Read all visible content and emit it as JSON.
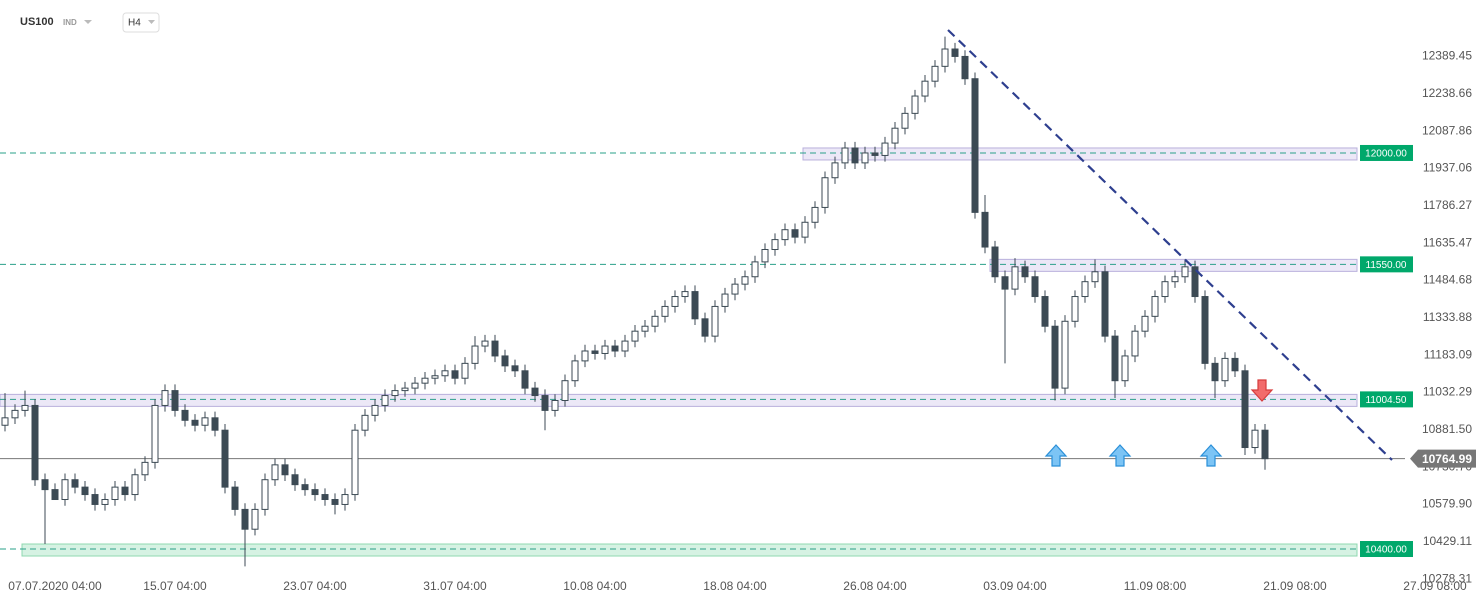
{
  "header": {
    "symbol": "US100",
    "market": "IND",
    "interval": "H4"
  },
  "chart_data": {
    "type": "candlestick",
    "categories": [
      null,
      null,
      null,
      null,
      null,
      "07.07.2020 04:00",
      null,
      null,
      null,
      null,
      null,
      null,
      null,
      null,
      null,
      null,
      null,
      "15.07 04:00",
      null,
      null,
      null,
      null,
      null,
      null,
      null,
      null,
      null,
      null,
      null,
      null,
      null,
      "23.07 04:00",
      null,
      null,
      null,
      null,
      null,
      null,
      null,
      null,
      null,
      null,
      null,
      null,
      null,
      "31.07 04:00",
      null,
      null,
      null,
      null,
      null,
      null,
      null,
      null,
      null,
      null,
      null,
      null,
      null,
      "10.08 04:00",
      null,
      null,
      null,
      null,
      null,
      null,
      null,
      null,
      null,
      null,
      null,
      null,
      null,
      "18.08 04:00",
      null,
      null,
      null,
      null,
      null,
      null,
      null,
      null,
      null,
      null,
      null,
      null,
      null,
      "26.08 04:00",
      null,
      null,
      null,
      null,
      null,
      null,
      null,
      null,
      null,
      null,
      null,
      null,
      null,
      "03.09 04:00",
      null,
      null,
      null,
      null,
      null,
      null,
      null,
      null,
      null,
      null,
      null,
      null,
      null,
      "11.09 08:00",
      null,
      null,
      null,
      null,
      null,
      null,
      null,
      null,
      null,
      null,
      null,
      null,
      null,
      "21.09 08:00",
      null,
      null,
      null,
      null,
      null,
      null,
      null,
      null,
      null,
      null,
      null,
      null,
      null,
      "27.09 08:00"
    ],
    "open": [
      10900,
      10930,
      10960,
      10980,
      10680,
      10640,
      10600,
      10680,
      10650,
      10620,
      10580,
      10600,
      10650,
      10620,
      10700,
      10750,
      10980,
      11040,
      10960,
      10920,
      10900,
      10930,
      10880,
      10650,
      10560,
      10480,
      10560,
      10680,
      10740,
      10700,
      10660,
      10640,
      10620,
      10600,
      10580,
      10620,
      10880,
      10940,
      10980,
      11020,
      11040,
      11050,
      11070,
      11090,
      11100,
      11120,
      11090,
      11150,
      11220,
      11240,
      11180,
      11140,
      11120,
      11050,
      11020,
      10960,
      11000,
      11080,
      11160,
      11200,
      11190,
      11220,
      11200,
      11240,
      11280,
      11300,
      11340,
      11380,
      11420,
      11440,
      11330,
      11260,
      11380,
      11430,
      11470,
      11500,
      11560,
      11610,
      11650,
      11690,
      11660,
      11720,
      11780,
      11900,
      11960,
      12020,
      11960,
      12000,
      11990,
      12040,
      12100,
      12160,
      12230,
      12290,
      12350,
      12420,
      12390,
      12300,
      11760,
      11620,
      11500,
      11450,
      11540,
      11500,
      11420,
      11300,
      11050,
      11320,
      11420,
      11480,
      11520,
      11260,
      11080,
      11180,
      11280,
      11340,
      11420,
      11480,
      11500,
      11540,
      11420,
      11150,
      11080,
      11170,
      11120,
      10810,
      10880,
      null,
      null,
      null,
      null,
      null,
      null,
      null,
      null,
      null,
      null,
      null,
      null,
      null,
      null,
      null,
      null,
      null
    ],
    "high": [
      11030,
      10985,
      11040,
      11005,
      10705,
      10665,
      10705,
      10705,
      10675,
      10645,
      10625,
      10675,
      10675,
      10725,
      10775,
      11005,
      11065,
      11065,
      10985,
      10945,
      10955,
      10955,
      10905,
      10675,
      10585,
      10585,
      10705,
      10765,
      10765,
      10725,
      10685,
      10665,
      10645,
      10625,
      10645,
      10905,
      10965,
      11005,
      11045,
      11065,
      11075,
      11095,
      11115,
      11125,
      11145,
      11145,
      11175,
      11260,
      11265,
      11265,
      11205,
      11165,
      11145,
      11075,
      11045,
      11025,
      11105,
      11185,
      11225,
      11225,
      11245,
      11245,
      11265,
      11305,
      11325,
      11365,
      11405,
      11445,
      11465,
      11465,
      11355,
      11405,
      11455,
      11495,
      11525,
      11585,
      11635,
      11675,
      11715,
      11715,
      11745,
      11805,
      11925,
      11985,
      12045,
      12045,
      12025,
      12025,
      12065,
      12125,
      12185,
      12255,
      12315,
      12375,
      12470,
      12445,
      12415,
      12325,
      11830,
      11645,
      11525,
      11575,
      11565,
      11525,
      11445,
      11325,
      11345,
      11445,
      11505,
      11570,
      11545,
      11285,
      11205,
      11305,
      11365,
      11445,
      11505,
      11525,
      11570,
      11565,
      11445,
      11175,
      11195,
      11195,
      11145,
      10905,
      10905,
      null,
      null,
      null,
      null,
      null,
      null,
      null,
      null,
      null,
      null,
      null,
      null,
      null,
      null,
      null,
      null,
      null
    ],
    "low": [
      10875,
      10905,
      10935,
      10655,
      10420,
      10615,
      10575,
      10625,
      10595,
      10555,
      10555,
      10575,
      10595,
      10595,
      10675,
      10725,
      10955,
      10935,
      10895,
      10875,
      10875,
      10855,
      10625,
      10535,
      10330,
      10455,
      10535,
      10655,
      10675,
      10635,
      10615,
      10595,
      10575,
      10540,
      10555,
      10595,
      10855,
      10915,
      10955,
      10995,
      11015,
      11025,
      11045,
      11065,
      11075,
      11065,
      11065,
      11125,
      11195,
      11155,
      11115,
      11095,
      11025,
      10995,
      10880,
      10935,
      10975,
      11055,
      11135,
      11165,
      11165,
      11175,
      11175,
      11215,
      11255,
      11275,
      11315,
      11355,
      11395,
      11305,
      11235,
      11235,
      11355,
      11405,
      11445,
      11475,
      11535,
      11585,
      11625,
      11635,
      11635,
      11695,
      11755,
      11875,
      11935,
      11935,
      11935,
      11965,
      11965,
      12015,
      12075,
      12135,
      12205,
      12265,
      12325,
      12365,
      12275,
      11735,
      11595,
      11475,
      11150,
      11425,
      11475,
      11395,
      11275,
      11000,
      11025,
      11295,
      11395,
      11455,
      11235,
      11010,
      11055,
      11155,
      11255,
      11315,
      11395,
      11455,
      11475,
      11395,
      11125,
      11010,
      11055,
      11095,
      10780,
      10785,
      10720,
      null,
      null,
      null,
      null,
      null,
      null,
      null,
      null,
      null,
      null,
      null,
      null,
      null,
      null,
      null,
      null,
      null
    ],
    "close": [
      10930,
      10960,
      10980,
      10680,
      10640,
      10600,
      10680,
      10650,
      10620,
      10580,
      10600,
      10650,
      10620,
      10700,
      10750,
      10980,
      11040,
      10960,
      10920,
      10900,
      10930,
      10880,
      10650,
      10560,
      10480,
      10560,
      10680,
      10740,
      10700,
      10660,
      10640,
      10620,
      10600,
      10580,
      10620,
      10880,
      10940,
      10980,
      11020,
      11040,
      11050,
      11070,
      11090,
      11100,
      11120,
      11090,
      11150,
      11220,
      11240,
      11180,
      11140,
      11120,
      11050,
      11020,
      10960,
      11000,
      11080,
      11160,
      11200,
      11190,
      11220,
      11200,
      11240,
      11280,
      11300,
      11340,
      11380,
      11420,
      11440,
      11330,
      11260,
      11380,
      11430,
      11470,
      11500,
      11560,
      11610,
      11650,
      11690,
      11660,
      11720,
      11780,
      11900,
      11960,
      12020,
      11960,
      12000,
      11990,
      12040,
      12100,
      12160,
      12230,
      12290,
      12350,
      12420,
      12390,
      12300,
      11760,
      11620,
      11500,
      11450,
      11540,
      11500,
      11420,
      11300,
      11050,
      11320,
      11420,
      11480,
      11520,
      11260,
      11080,
      11180,
      11280,
      11340,
      11420,
      11480,
      11500,
      11540,
      11420,
      11150,
      11080,
      11170,
      11120,
      10810,
      10880,
      10765,
      null,
      null,
      null,
      null,
      null,
      null,
      null,
      null,
      null,
      null,
      null,
      null,
      null,
      null,
      null,
      null,
      null
    ],
    "up_color": "#ffffff",
    "down_color": "#3c4a54",
    "ylim": [
      10194,
      12618
    ],
    "yticks": [
      12389.45,
      12238.66,
      12087.86,
      11937.06,
      11786.27,
      11635.47,
      11484.68,
      11333.88,
      11183.09,
      11032.29,
      {
        "value": 10881.5,
        "label": "10881.50"
      },
      {
        "value": 10730.7,
        "label": "10730.70"
      },
      {
        "value": 10579.9,
        "label": "10579.90"
      },
      10429.11,
      10278.31
    ],
    "levels": {
      "values": [
        12000,
        11550,
        11004.5,
        10400
      ],
      "value_labels": [
        "12000.00",
        "11550.00",
        "11004.50",
        "10400.00"
      ],
      "color": "#00a86b"
    },
    "last_price": 10764.99
  }
}
